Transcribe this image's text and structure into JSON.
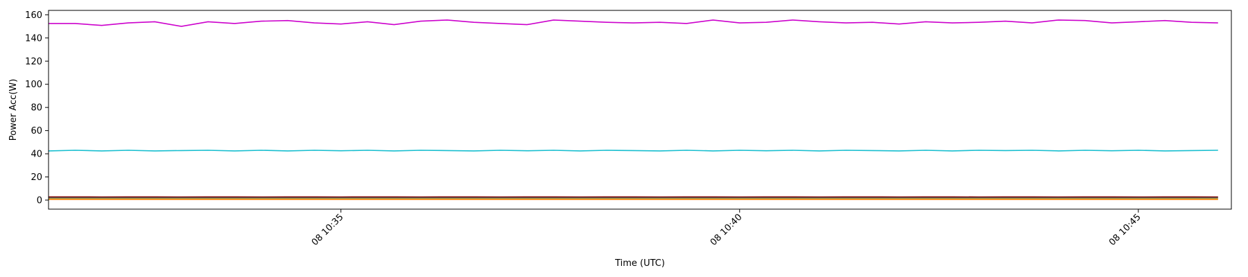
{
  "chart_data": {
    "type": "line",
    "title": "",
    "xlabel": "Time (UTC)",
    "ylabel": "Power Acc(W)",
    "x_ticks": [
      {
        "time": "10:35",
        "label": "08 10:35"
      },
      {
        "time": "10:40",
        "label": "08 10:40"
      },
      {
        "time": "10:45",
        "label": "08 10:45"
      }
    ],
    "y_ticks": [
      0,
      20,
      40,
      60,
      80,
      100,
      120,
      140,
      160
    ],
    "xlim": [
      "10:31:20",
      "10:46:10"
    ],
    "ylim": [
      -7.8,
      163.8
    ],
    "x": [
      "10:31:20",
      "10:31:40",
      "10:32:00",
      "10:32:20",
      "10:32:40",
      "10:33:00",
      "10:33:20",
      "10:33:40",
      "10:34:00",
      "10:34:20",
      "10:34:40",
      "10:35:00",
      "10:35:20",
      "10:35:40",
      "10:36:00",
      "10:36:20",
      "10:36:40",
      "10:37:00",
      "10:37:20",
      "10:37:40",
      "10:38:00",
      "10:38:20",
      "10:38:40",
      "10:39:00",
      "10:39:20",
      "10:39:40",
      "10:40:00",
      "10:40:20",
      "10:40:40",
      "10:41:00",
      "10:41:20",
      "10:41:40",
      "10:42:00",
      "10:42:20",
      "10:42:40",
      "10:43:00",
      "10:43:20",
      "10:43:40",
      "10:44:00",
      "10:44:20",
      "10:44:40",
      "10:45:00",
      "10:45:20",
      "10:45:40",
      "10:46:00"
    ],
    "series": [
      {
        "color": "#cc00cc",
        "values": [
          152.5,
          152.5,
          150.8,
          153.0,
          154.0,
          150.0,
          154.0,
          152.5,
          154.5,
          155.0,
          153.0,
          152.0,
          154.0,
          151.5,
          154.5,
          155.5,
          153.5,
          152.5,
          151.5,
          155.5,
          154.5,
          153.5,
          153.0,
          153.5,
          152.5,
          155.5,
          153.0,
          153.5,
          155.5,
          154.0,
          153.0,
          153.5,
          152.0,
          154.0,
          153.0,
          153.5,
          154.5,
          153.0,
          155.5,
          155.0,
          153.0,
          154.0,
          155.0,
          153.5,
          153.0
        ]
      },
      {
        "color": "#17becf",
        "values": [
          42.5,
          43.0,
          42.5,
          43.0,
          42.5,
          42.8,
          43.0,
          42.5,
          43.0,
          42.5,
          43.0,
          42.6,
          43.0,
          42.5,
          43.0,
          42.8,
          42.5,
          43.0,
          42.6,
          43.0,
          42.5,
          43.0,
          42.8,
          42.5,
          43.0,
          42.5,
          43.0,
          42.6,
          43.0,
          42.5,
          43.0,
          42.8,
          42.5,
          43.0,
          42.5,
          43.0,
          42.8,
          43.0,
          42.5,
          43.0,
          42.6,
          43.0,
          42.5,
          42.8,
          43.0
        ]
      },
      {
        "color": "#8b0000",
        "values": [
          2.8,
          2.8,
          2.7,
          2.8,
          2.8,
          2.7,
          2.8,
          2.8,
          2.7,
          2.8,
          2.8,
          2.7,
          2.8,
          2.8,
          2.7,
          2.8,
          2.8,
          2.7,
          2.8,
          2.8,
          2.7,
          2.8,
          2.8,
          2.7,
          2.8,
          2.8,
          2.7,
          2.8,
          2.8,
          2.7,
          2.8,
          2.8,
          2.7,
          2.8,
          2.8,
          2.7,
          2.8,
          2.8,
          2.7,
          2.8,
          2.8,
          2.7,
          2.8,
          2.8,
          2.7
        ]
      },
      {
        "color": "#555555",
        "values": [
          2.0,
          2.0,
          2.0,
          2.0,
          2.0,
          2.0,
          2.0,
          2.0,
          2.0,
          2.0,
          2.0,
          2.0,
          2.0,
          2.0,
          2.0,
          2.0,
          2.0,
          2.0,
          2.0,
          2.0,
          2.0,
          2.0,
          2.0,
          2.0,
          2.0,
          2.0,
          2.0,
          2.0,
          2.0,
          2.0,
          2.0,
          2.0,
          2.0,
          2.0,
          2.0,
          2.0,
          2.0,
          2.0,
          2.0,
          2.0,
          2.0,
          2.0,
          2.0,
          2.0,
          2.0
        ]
      },
      {
        "color": "#bcbd22",
        "values": [
          1.0,
          1.0,
          1.0,
          1.0,
          1.0,
          1.0,
          1.0,
          1.0,
          1.0,
          1.0,
          1.0,
          1.0,
          1.0,
          1.0,
          1.0,
          1.0,
          1.0,
          1.0,
          1.0,
          1.0,
          1.0,
          1.0,
          1.0,
          1.0,
          1.0,
          1.0,
          1.0,
          1.0,
          1.0,
          1.0,
          1.0,
          1.0,
          1.0,
          1.0,
          1.0,
          1.0,
          1.0,
          1.0,
          1.0,
          1.0,
          1.0,
          1.0,
          1.0,
          1.0,
          1.0
        ]
      },
      {
        "color": "#ff7f0e",
        "values": [
          0.6,
          0.6,
          0.6,
          0.6,
          0.6,
          0.6,
          0.6,
          0.6,
          0.6,
          0.6,
          0.6,
          0.6,
          0.6,
          0.6,
          0.6,
          0.6,
          0.6,
          0.6,
          0.6,
          0.6,
          0.6,
          0.6,
          0.6,
          0.6,
          0.6,
          0.6,
          0.6,
          0.6,
          0.6,
          0.6,
          0.6,
          0.6,
          0.6,
          0.6,
          0.6,
          0.6,
          0.6,
          0.6,
          0.6,
          0.6,
          0.6,
          0.6,
          0.6,
          0.6,
          0.6
        ]
      }
    ],
    "grid": false,
    "legend": "none"
  }
}
